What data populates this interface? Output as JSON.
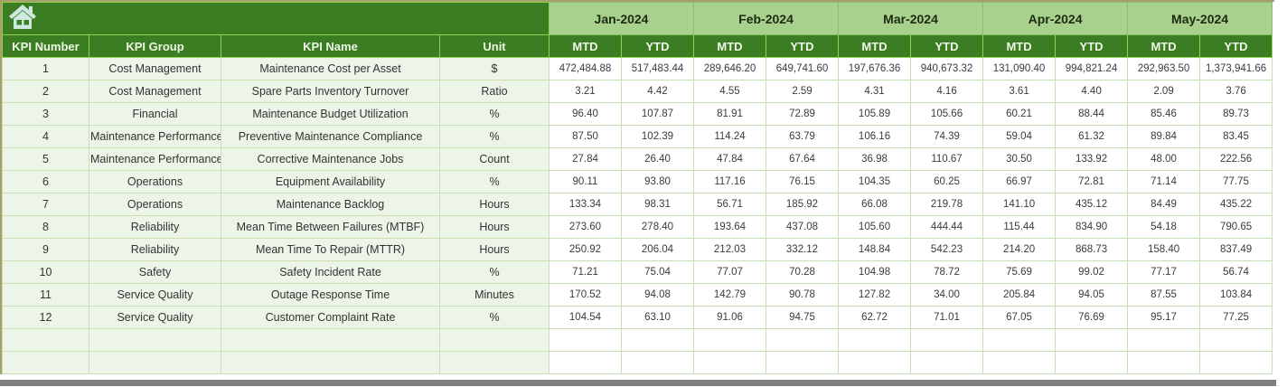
{
  "header": {
    "home_icon": "home"
  },
  "columns": {
    "kpi_number": "KPI Number",
    "kpi_group": "KPI Group",
    "kpi_name": "KPI Name",
    "unit": "Unit"
  },
  "months": [
    "Jan-2024",
    "Feb-2024",
    "Mar-2024",
    "Apr-2024",
    "May-2024"
  ],
  "period_labels": {
    "mtd": "MTD",
    "ytd": "YTD"
  },
  "colors": {
    "header_dark_green": "#3A7D22",
    "month_light_green": "#A9D18E",
    "header_border_green": "#92D050",
    "grid_border_green": "#C6E0B4",
    "left_column_tint": "#EDF5E9",
    "scrollbar_grey": "#7F7F7F",
    "home_icon_fill": "#CFE9E2"
  },
  "rows": [
    {
      "kpi_number": "1",
      "kpi_group": "Cost Management",
      "kpi_name": "Maintenance Cost per Asset",
      "unit": "$",
      "values": [
        "472,484.88",
        "517,483.44",
        "289,646.20",
        "649,741.60",
        "197,676.36",
        "940,673.32",
        "131,090.40",
        "994,821.24",
        "292,963.50",
        "1,373,941.66"
      ]
    },
    {
      "kpi_number": "2",
      "kpi_group": "Cost Management",
      "kpi_name": "Spare Parts Inventory Turnover",
      "unit": "Ratio",
      "values": [
        "3.21",
        "4.42",
        "4.55",
        "2.59",
        "4.31",
        "4.16",
        "3.61",
        "4.40",
        "2.09",
        "3.76"
      ]
    },
    {
      "kpi_number": "3",
      "kpi_group": "Financial",
      "kpi_name": "Maintenance Budget Utilization",
      "unit": "%",
      "values": [
        "96.40",
        "107.87",
        "81.91",
        "72.89",
        "105.89",
        "105.66",
        "60.21",
        "88.44",
        "85.46",
        "89.73"
      ]
    },
    {
      "kpi_number": "4",
      "kpi_group": "Maintenance Performance",
      "kpi_name": "Preventive Maintenance Compliance",
      "unit": "%",
      "values": [
        "87.50",
        "102.39",
        "114.24",
        "63.79",
        "106.16",
        "74.39",
        "59.04",
        "61.32",
        "89.84",
        "83.45"
      ]
    },
    {
      "kpi_number": "5",
      "kpi_group": "Maintenance Performance",
      "kpi_name": "Corrective Maintenance Jobs",
      "unit": "Count",
      "values": [
        "27.84",
        "26.40",
        "47.84",
        "67.64",
        "36.98",
        "110.67",
        "30.50",
        "133.92",
        "48.00",
        "222.56"
      ]
    },
    {
      "kpi_number": "6",
      "kpi_group": "Operations",
      "kpi_name": "Equipment Availability",
      "unit": "%",
      "values": [
        "90.11",
        "93.80",
        "117.16",
        "76.15",
        "104.35",
        "60.25",
        "66.97",
        "72.81",
        "71.14",
        "77.75"
      ]
    },
    {
      "kpi_number": "7",
      "kpi_group": "Operations",
      "kpi_name": "Maintenance Backlog",
      "unit": "Hours",
      "values": [
        "133.34",
        "98.31",
        "56.71",
        "185.92",
        "66.08",
        "219.78",
        "141.10",
        "435.12",
        "84.49",
        "435.22"
      ]
    },
    {
      "kpi_number": "8",
      "kpi_group": "Reliability",
      "kpi_name": "Mean Time Between Failures (MTBF)",
      "unit": "Hours",
      "values": [
        "273.60",
        "278.40",
        "193.64",
        "437.08",
        "105.60",
        "444.44",
        "115.44",
        "834.90",
        "54.18",
        "790.65"
      ]
    },
    {
      "kpi_number": "9",
      "kpi_group": "Reliability",
      "kpi_name": "Mean Time To Repair (MTTR)",
      "unit": "Hours",
      "values": [
        "250.92",
        "206.04",
        "212.03",
        "332.12",
        "148.84",
        "542.23",
        "214.20",
        "868.73",
        "158.40",
        "837.49"
      ]
    },
    {
      "kpi_number": "10",
      "kpi_group": "Safety",
      "kpi_name": "Safety Incident Rate",
      "unit": "%",
      "values": [
        "71.21",
        "75.04",
        "77.07",
        "70.28",
        "104.98",
        "78.72",
        "75.69",
        "99.02",
        "77.17",
        "56.74"
      ]
    },
    {
      "kpi_number": "11",
      "kpi_group": "Service Quality",
      "kpi_name": "Outage Response Time",
      "unit": "Minutes",
      "values": [
        "170.52",
        "94.08",
        "142.79",
        "90.78",
        "127.82",
        "34.00",
        "205.84",
        "94.05",
        "87.55",
        "103.84"
      ]
    },
    {
      "kpi_number": "12",
      "kpi_group": "Service Quality",
      "kpi_name": "Customer Complaint Rate",
      "unit": "%",
      "values": [
        "104.54",
        "63.10",
        "91.06",
        "94.75",
        "62.72",
        "71.01",
        "67.05",
        "76.69",
        "95.17",
        "77.25"
      ]
    }
  ]
}
